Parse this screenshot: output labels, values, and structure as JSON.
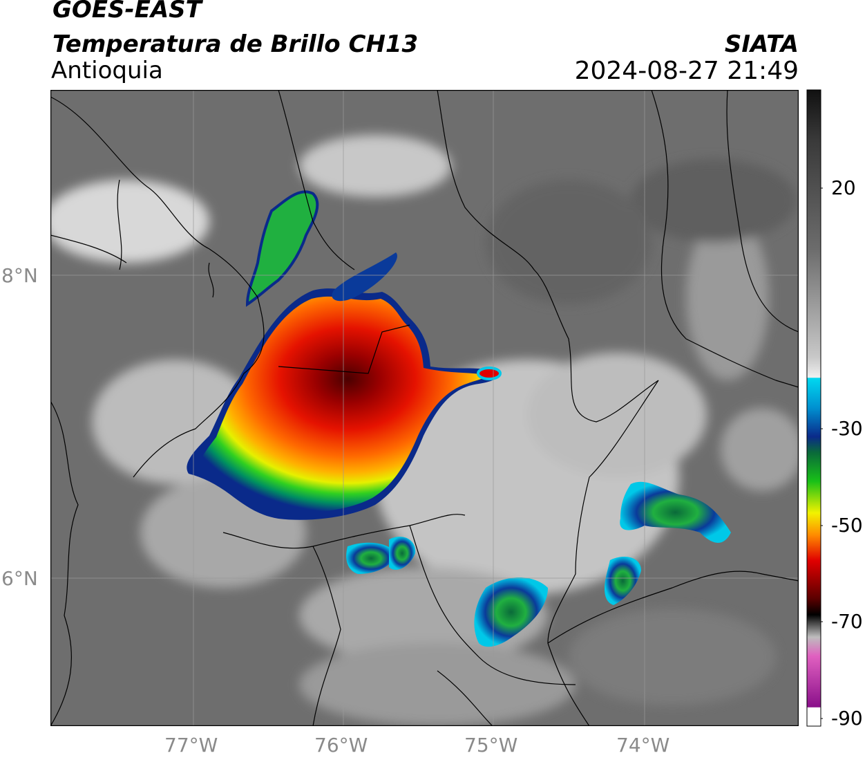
{
  "header": {
    "satellite": "GOES-EAST",
    "product": "Temperatura de Brillo CH13",
    "region": "Antioquia",
    "organization": "SIATA",
    "datetime": "2024-08-27 21:49"
  },
  "map": {
    "longitude_ticks": [
      "77°W",
      "76°W",
      "75°W",
      "74°W"
    ],
    "latitude_ticks": [
      "8°N",
      "6°N"
    ],
    "lon_range": [
      -77.95,
      -73.0
    ],
    "lat_range": [
      4.95,
      9.2
    ],
    "gridlines": true,
    "storm_cells": [
      {
        "name": "main-convective-system",
        "min_temp_c": -70
      },
      {
        "name": "eastern-cell",
        "min_temp_c": -45
      },
      {
        "name": "southern-cell",
        "min_temp_c": -40
      },
      {
        "name": "southeast-cell",
        "min_temp_c": -35
      }
    ]
  },
  "colorbar": {
    "tick_labels": [
      "20",
      "-30",
      "-50",
      "-70",
      "-90"
    ],
    "range": [
      -90,
      40
    ],
    "colors": {
      "gray_high": "#111111",
      "gray_low": "#f0f0f0",
      "cyan": "#00d8f0",
      "blue": "#0a2a8a",
      "green": "#18c018",
      "yellow": "#f2f200",
      "orange": "#ff8a00",
      "red": "#e00000",
      "dark_red": "#5a0000",
      "black": "#000000",
      "pink": "#e060c0",
      "purple": "#8a108a"
    }
  }
}
